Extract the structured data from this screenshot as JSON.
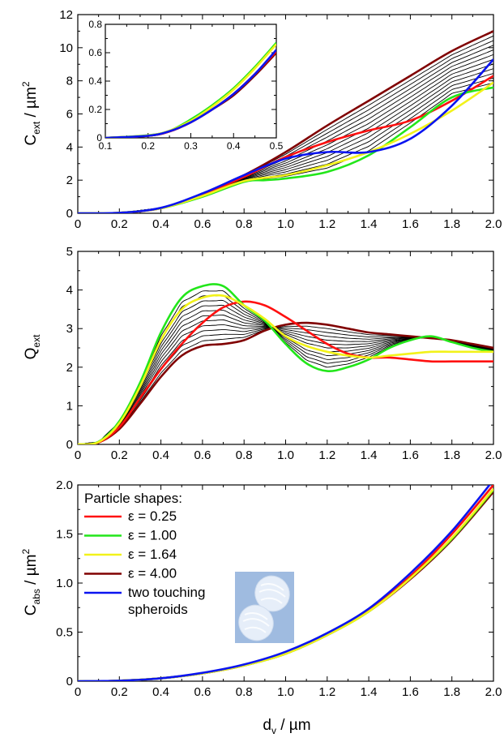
{
  "figure": {
    "panel1": {
      "ylabel_main": "C",
      "ylabel_sub": "ext",
      "ylabel_unit": " / µm",
      "ylabel_sup": "2",
      "xticks": [
        "0",
        "0.2",
        "0.4",
        "0.6",
        "0.8",
        "1.0",
        "1.2",
        "1.4",
        "1.6",
        "1.8",
        "2.0"
      ],
      "yticks": [
        "0",
        "2",
        "4",
        "6",
        "8",
        "10",
        "12"
      ]
    },
    "inset": {
      "xticks": [
        "0.1",
        "0.2",
        "0.3",
        "0.4",
        "0.5"
      ],
      "yticks": [
        "0",
        "0.2",
        "0.4",
        "0.6",
        "0.8"
      ]
    },
    "panel2": {
      "ylabel_main": "Q",
      "ylabel_sub": "ext",
      "xticks": [
        "0",
        "0.2",
        "0.4",
        "0.6",
        "0.8",
        "1.0",
        "1.2",
        "1.4",
        "1.6",
        "1.8",
        "2.0"
      ],
      "yticks": [
        "0",
        "1",
        "2",
        "3",
        "4",
        "5"
      ]
    },
    "panel3": {
      "ylabel_main": "C",
      "ylabel_sub": "abs",
      "ylabel_unit": " / µm",
      "ylabel_sup": "2",
      "xticks": [
        "0",
        "0.2",
        "0.4",
        "0.6",
        "0.8",
        "1.0",
        "1.2",
        "1.4",
        "1.6",
        "1.8",
        "2.0"
      ],
      "yticks": [
        "0",
        "0.5",
        "1.0",
        "1.5",
        "2.0"
      ]
    },
    "xlabel_main": "d",
    "xlabel_sub": "v",
    "xlabel_unit": " / µm",
    "legend": {
      "title": "Particle shapes:",
      "items": [
        {
          "label": "ε = 0.25",
          "color": "#ff1010"
        },
        {
          "label": "ε = 1.00",
          "color": "#22e61a"
        },
        {
          "label": "ε = 1.64",
          "color": "#f2f21a"
        },
        {
          "label": "ε = 4.00",
          "color": "#800000"
        },
        {
          "label": "two touching",
          "label2": "spheroids",
          "color": "#0a14f0"
        }
      ]
    },
    "colors": {
      "eps025": "#ff1010",
      "eps100": "#22e61a",
      "eps164": "#f2f21a",
      "eps400": "#800000",
      "touching": "#0a14f0",
      "intermediate": "#000000",
      "spheroid_image_bg": "#9fbbe0"
    }
  },
  "chart_data": [
    {
      "type": "line",
      "xlabel": "d_v / µm",
      "ylabel": "C_ext / µm²",
      "xlim": [
        0,
        2.0
      ],
      "ylim": [
        0,
        12
      ],
      "series": [
        {
          "name": "ε = 0.25",
          "x": [
            0,
            0.2,
            0.4,
            0.6,
            0.8,
            1.0,
            1.2,
            1.4,
            1.6,
            1.8,
            2.0
          ],
          "values": [
            0,
            0.03,
            0.3,
            1.1,
            2.2,
            3.4,
            4.3,
            5.0,
            5.6,
            6.8,
            8.3
          ]
        },
        {
          "name": "ε = 1.00",
          "x": [
            0,
            0.2,
            0.4,
            0.6,
            0.8,
            0.9,
            1.0,
            1.2,
            1.4,
            1.6,
            1.8,
            2.0
          ],
          "values": [
            0,
            0.03,
            0.3,
            1.0,
            1.9,
            2.0,
            2.1,
            2.5,
            3.5,
            5.2,
            7.0,
            7.6
          ]
        },
        {
          "name": "ε = 1.64",
          "x": [
            0,
            0.2,
            0.4,
            0.6,
            0.8,
            1.0,
            1.2,
            1.4,
            1.6,
            1.8,
            2.0
          ],
          "values": [
            0,
            0.03,
            0.3,
            1.05,
            1.95,
            2.3,
            2.9,
            3.7,
            4.8,
            6.2,
            7.9
          ]
        },
        {
          "name": "ε = 4.00",
          "x": [
            0,
            0.2,
            0.4,
            0.6,
            0.8,
            1.0,
            1.2,
            1.4,
            1.6,
            1.8,
            2.0
          ],
          "values": [
            0,
            0.03,
            0.32,
            1.15,
            2.3,
            3.7,
            5.3,
            6.8,
            8.3,
            9.8,
            11.0
          ]
        },
        {
          "name": "two touching spheroids",
          "x": [
            0,
            0.2,
            0.4,
            0.6,
            0.8,
            1.0,
            1.2,
            1.4,
            1.6,
            1.8,
            2.0
          ],
          "values": [
            0,
            0.03,
            0.33,
            1.2,
            2.3,
            3.3,
            3.7,
            3.7,
            4.5,
            6.5,
            9.3
          ]
        }
      ]
    },
    {
      "type": "line",
      "xlim": [
        0.1,
        0.5
      ],
      "ylim": [
        0,
        0.8
      ],
      "series": [
        {
          "name": "ε = 0.25",
          "x": [
            0.1,
            0.2,
            0.25,
            0.3,
            0.35,
            0.4,
            0.45,
            0.5
          ],
          "values": [
            0,
            0.015,
            0.045,
            0.11,
            0.2,
            0.31,
            0.45,
            0.61
          ]
        },
        {
          "name": "ε = 1.00",
          "x": [
            0.1,
            0.2,
            0.25,
            0.3,
            0.35,
            0.4,
            0.45,
            0.5
          ],
          "values": [
            0,
            0.018,
            0.05,
            0.13,
            0.23,
            0.35,
            0.5,
            0.67
          ]
        },
        {
          "name": "ε = 1.64",
          "x": [
            0.1,
            0.2,
            0.25,
            0.3,
            0.35,
            0.4,
            0.45,
            0.5
          ],
          "values": [
            0,
            0.017,
            0.05,
            0.12,
            0.22,
            0.34,
            0.49,
            0.66
          ]
        },
        {
          "name": "ε = 4.00",
          "x": [
            0.1,
            0.2,
            0.25,
            0.3,
            0.35,
            0.4,
            0.45,
            0.5
          ],
          "values": [
            0,
            0.015,
            0.045,
            0.11,
            0.2,
            0.3,
            0.44,
            0.6
          ]
        },
        {
          "name": "two touching spheroids",
          "x": [
            0.1,
            0.2,
            0.25,
            0.3,
            0.35,
            0.4,
            0.45,
            0.5
          ],
          "values": [
            0,
            0.015,
            0.046,
            0.11,
            0.2,
            0.31,
            0.45,
            0.62
          ]
        }
      ]
    },
    {
      "type": "line",
      "ylabel": "Q_ext",
      "xlim": [
        0,
        2.0
      ],
      "ylim": [
        0,
        5
      ],
      "series": [
        {
          "name": "ε = 0.25",
          "x": [
            0,
            0.1,
            0.2,
            0.3,
            0.4,
            0.5,
            0.6,
            0.7,
            0.8,
            0.9,
            1.0,
            1.1,
            1.2,
            1.3,
            1.4,
            1.5,
            1.6,
            1.7,
            1.8,
            1.9,
            2.0
          ],
          "values": [
            0,
            0.05,
            0.45,
            1.2,
            1.95,
            2.6,
            3.15,
            3.55,
            3.7,
            3.6,
            3.3,
            2.95,
            2.6,
            2.35,
            2.25,
            2.25,
            2.2,
            2.15,
            2.15,
            2.15,
            2.15
          ]
        },
        {
          "name": "ε = 1.00",
          "x": [
            0,
            0.1,
            0.2,
            0.3,
            0.4,
            0.5,
            0.6,
            0.7,
            0.8,
            0.9,
            1.0,
            1.1,
            1.2,
            1.3,
            1.4,
            1.5,
            1.6,
            1.7,
            1.8,
            1.9,
            2.0
          ],
          "values": [
            0,
            0.07,
            0.6,
            1.6,
            2.9,
            3.8,
            4.1,
            4.1,
            3.6,
            3.2,
            2.6,
            2.1,
            1.9,
            2.0,
            2.2,
            2.5,
            2.7,
            2.8,
            2.65,
            2.5,
            2.4
          ]
        },
        {
          "name": "ε = 1.64",
          "x": [
            0,
            0.1,
            0.2,
            0.3,
            0.4,
            0.5,
            0.6,
            0.7,
            0.8,
            0.9,
            1.0,
            1.1,
            1.2,
            1.3,
            1.4,
            1.5,
            1.6,
            1.7,
            1.8,
            1.9,
            2.0
          ],
          "values": [
            0,
            0.06,
            0.55,
            1.5,
            2.7,
            3.5,
            3.8,
            3.85,
            3.6,
            3.25,
            2.8,
            2.55,
            2.4,
            2.3,
            2.25,
            2.3,
            2.35,
            2.4,
            2.4,
            2.4,
            2.4
          ]
        },
        {
          "name": "ε = 4.00",
          "x": [
            0,
            0.1,
            0.2,
            0.3,
            0.4,
            0.5,
            0.6,
            0.7,
            0.8,
            0.9,
            1.0,
            1.1,
            1.2,
            1.3,
            1.4,
            1.5,
            1.6,
            1.7,
            1.8,
            1.9,
            2.0
          ],
          "values": [
            0,
            0.05,
            0.4,
            1.05,
            1.75,
            2.3,
            2.55,
            2.6,
            2.7,
            2.95,
            3.1,
            3.15,
            3.1,
            3.0,
            2.9,
            2.85,
            2.8,
            2.75,
            2.7,
            2.6,
            2.5
          ]
        }
      ]
    },
    {
      "type": "line",
      "xlabel": "d_v / µm",
      "ylabel": "C_abs / µm²",
      "xlim": [
        0,
        2.0
      ],
      "ylim": [
        0,
        2.0
      ],
      "series": [
        {
          "name": "ε = 0.25",
          "x": [
            0,
            0.2,
            0.4,
            0.6,
            0.8,
            1.0,
            1.2,
            1.4,
            1.6,
            1.8,
            2.0
          ],
          "values": [
            0,
            0.005,
            0.03,
            0.08,
            0.16,
            0.29,
            0.48,
            0.72,
            1.07,
            1.5,
            2.0
          ]
        },
        {
          "name": "ε = 1.00",
          "x": [
            0,
            0.2,
            0.4,
            0.6,
            0.8,
            1.0,
            1.2,
            1.4,
            1.6,
            1.8,
            2.0
          ],
          "values": [
            0,
            0.005,
            0.03,
            0.08,
            0.16,
            0.28,
            0.47,
            0.71,
            1.05,
            1.45,
            1.95
          ]
        },
        {
          "name": "ε = 1.64",
          "x": [
            0,
            0.2,
            0.4,
            0.6,
            0.8,
            1.0,
            1.2,
            1.4,
            1.6,
            1.8,
            2.0
          ],
          "values": [
            0,
            0.005,
            0.03,
            0.08,
            0.16,
            0.28,
            0.47,
            0.71,
            1.05,
            1.46,
            1.96
          ]
        },
        {
          "name": "ε = 4.00",
          "x": [
            0,
            0.2,
            0.4,
            0.6,
            0.8,
            1.0,
            1.2,
            1.4,
            1.6,
            1.8,
            2.0
          ],
          "values": [
            0,
            0.005,
            0.03,
            0.08,
            0.16,
            0.28,
            0.47,
            0.71,
            1.04,
            1.44,
            1.93
          ]
        },
        {
          "name": "two touching spheroids",
          "x": [
            0,
            0.2,
            0.4,
            0.6,
            0.8,
            1.0,
            1.2,
            1.4,
            1.6,
            1.8,
            2.0
          ],
          "values": [
            0,
            0.005,
            0.03,
            0.085,
            0.17,
            0.3,
            0.49,
            0.74,
            1.1,
            1.53,
            2.05
          ]
        }
      ]
    }
  ]
}
